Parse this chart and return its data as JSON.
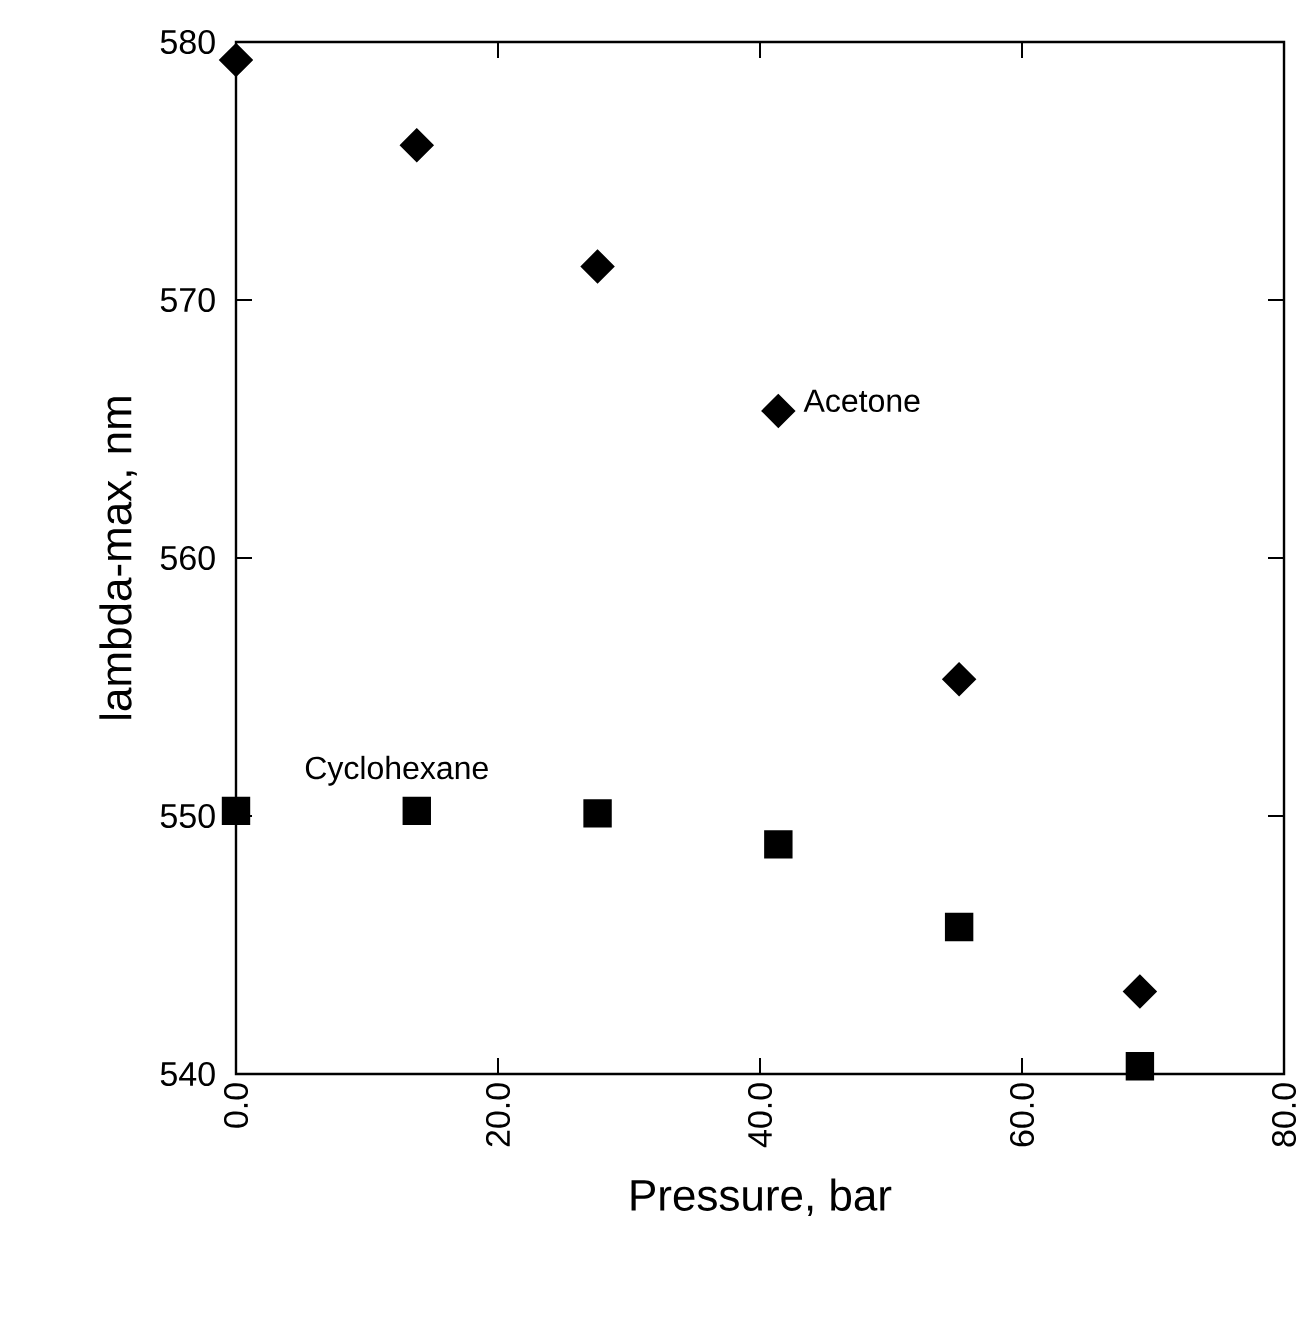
{
  "chart_data": {
    "type": "scatter",
    "xlabel": "Pressure, bar",
    "ylabel": "lambda-max, nm",
    "xlim": [
      0,
      80
    ],
    "ylim": [
      540,
      580
    ],
    "xticks": [
      {
        "value": 0,
        "label": "0.0"
      },
      {
        "value": 20,
        "label": "20.0"
      },
      {
        "value": 40,
        "label": "40.0"
      },
      {
        "value": 60,
        "label": "60.0"
      },
      {
        "value": 80,
        "label": "80.0"
      }
    ],
    "yticks": [
      540,
      550,
      560,
      570,
      580
    ],
    "series": [
      {
        "name": "Acetone",
        "color": "#000000",
        "marker": "diamond",
        "x": [
          0,
          13.8,
          27.6,
          41.4,
          55.2,
          69.0
        ],
        "values": [
          579.3,
          576.0,
          571.3,
          565.7,
          555.3,
          543.2
        ]
      },
      {
        "name": "Cyclohexane",
        "color": "#000000",
        "marker": "square",
        "x": [
          0,
          13.8,
          27.6,
          41.4,
          55.2,
          69.0
        ],
        "values": [
          550.2,
          550.2,
          550.1,
          548.9,
          545.7,
          540.3
        ]
      }
    ]
  }
}
